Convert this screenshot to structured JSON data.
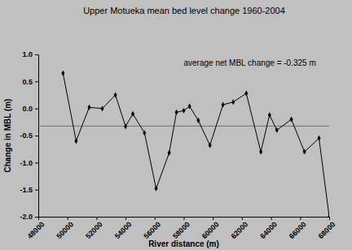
{
  "chart_data": {
    "type": "line",
    "title": "Upper Motueka mean bed level change 1960-2004",
    "x_label": "River distance (m)",
    "y_label": "Change in MBL (m)",
    "annotation": "average net MBL change = -0.325 m",
    "average": -0.325,
    "x": [
      49700,
      50600,
      51500,
      52400,
      53300,
      54000,
      54500,
      55300,
      56100,
      57000,
      57500,
      58000,
      58400,
      59000,
      59800,
      60700,
      61400,
      62300,
      63300,
      63900,
      64400,
      65400,
      66300,
      67300,
      68000
    ],
    "series": [
      {
        "color": "#000000",
        "marker": "diamond",
        "values": [
          0.65,
          -0.6,
          0.02,
          0.0,
          0.25,
          -0.33,
          -0.1,
          -0.45,
          -1.48,
          -0.82,
          -0.07,
          -0.04,
          0.04,
          -0.22,
          -0.68,
          0.07,
          0.12,
          0.28,
          -0.8,
          -0.12,
          -0.4,
          -0.2,
          -0.8,
          -0.55,
          -2.0
        ]
      }
    ],
    "xlim": [
      48000,
      68000
    ],
    "xticks": [
      48000,
      50000,
      52000,
      54000,
      56000,
      58000,
      60000,
      62000,
      64000,
      66000,
      68000
    ],
    "ylim": [
      -2.0,
      1.0
    ],
    "yticks": [
      {
        "value": -2,
        "label": "-2.0"
      },
      -1.5,
      {
        "value": -1,
        "label": "-1.0"
      },
      -0.5,
      {
        "value": 0,
        "label": "0.0"
      },
      0.5,
      {
        "value": 1,
        "label": "1.0"
      }
    ],
    "grid": false
  }
}
